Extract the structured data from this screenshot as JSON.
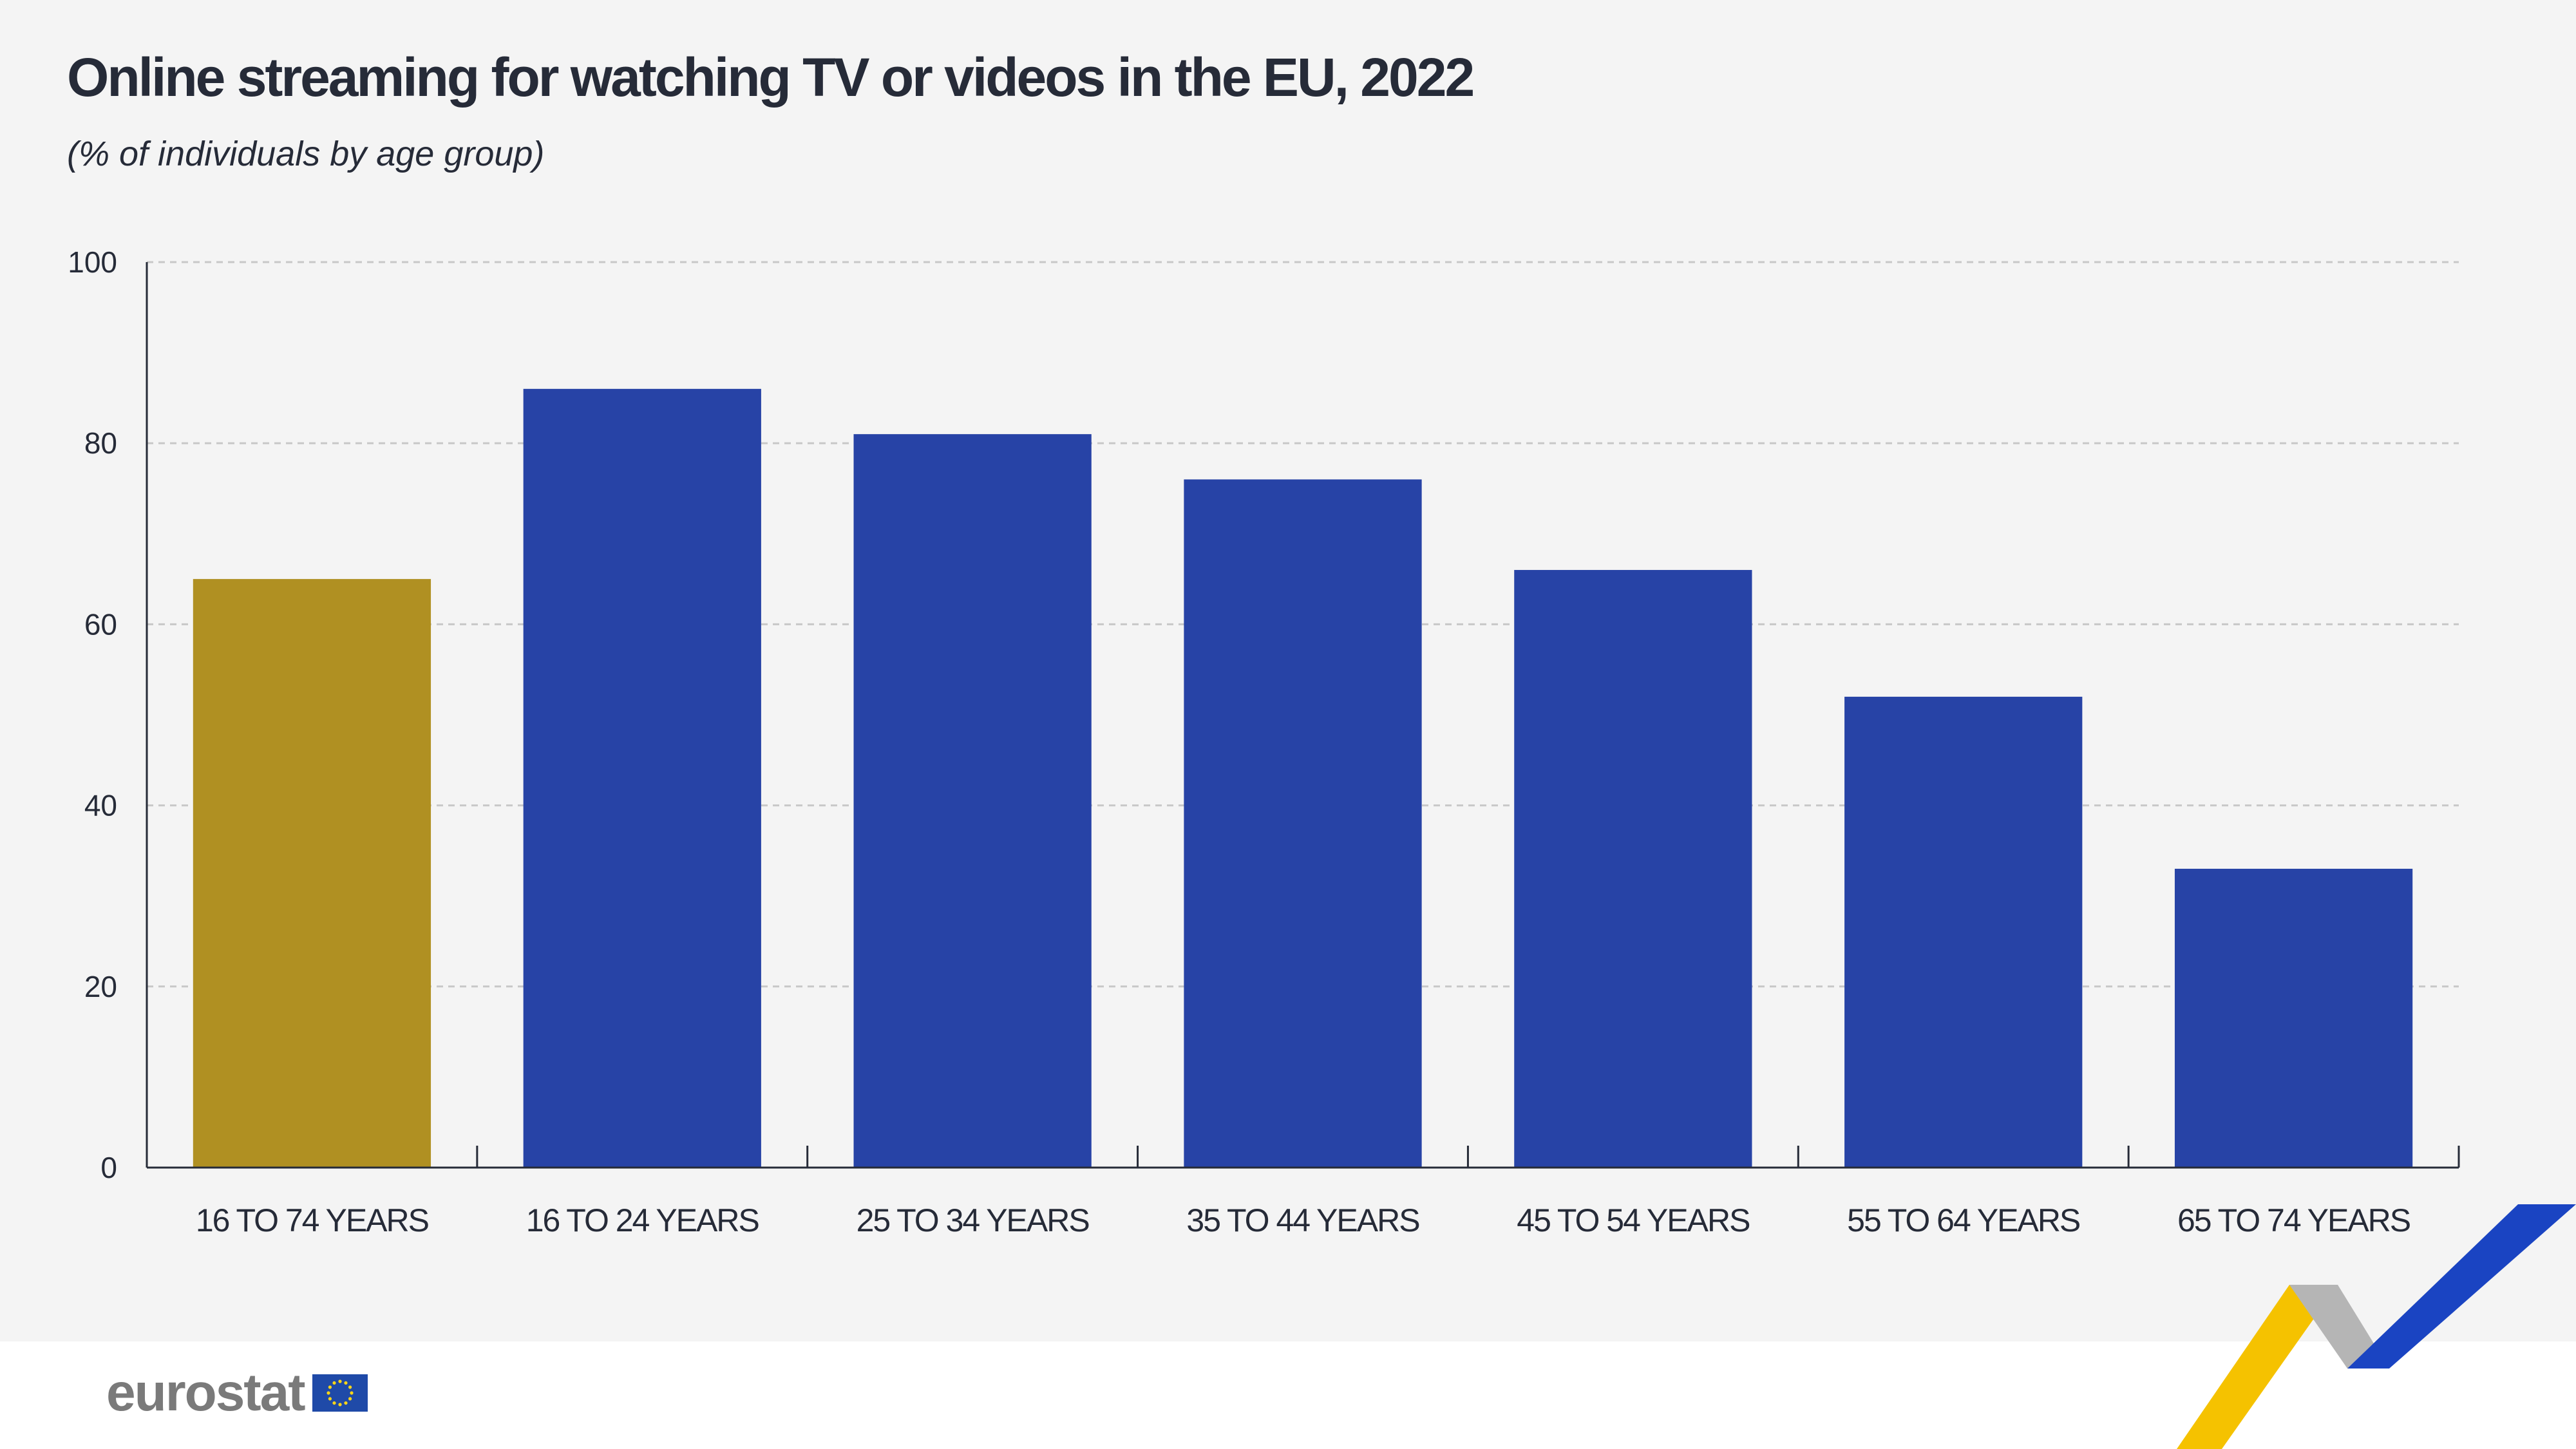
{
  "header": {
    "title": "Online streaming for watching TV or videos in the EU, 2022",
    "subtitle": "(% of individuals by age group)"
  },
  "footer": {
    "brand": "eurostat",
    "logo_icon": "eu-flag-icon"
  },
  "colors": {
    "total_bar": "#b09022",
    "age_bar": "#2743a6",
    "ribbon_yellow": "#f5c200",
    "ribbon_grey": "#b5b5b5",
    "ribbon_blue": "#1a44c2"
  },
  "chart_data": {
    "type": "bar",
    "title": "Online streaming for watching TV or videos in the EU, 2022",
    "subtitle": "(% of individuals by age group)",
    "xlabel": "",
    "ylabel": "",
    "ylim": [
      0,
      100
    ],
    "yticks": [
      0,
      20,
      40,
      60,
      80,
      100
    ],
    "grid": true,
    "categories": [
      "16 TO 74 YEARS",
      "16 TO 24 YEARS",
      "25 TO 34 YEARS",
      "35 TO 44 YEARS",
      "45 TO 54 YEARS",
      "55 TO 64 YEARS",
      "65 TO 74 YEARS"
    ],
    "values": [
      65,
      86,
      81,
      76,
      66,
      52,
      33
    ],
    "bar_colors": [
      "#b09022",
      "#2743a6",
      "#2743a6",
      "#2743a6",
      "#2743a6",
      "#2743a6",
      "#2743a6"
    ]
  }
}
